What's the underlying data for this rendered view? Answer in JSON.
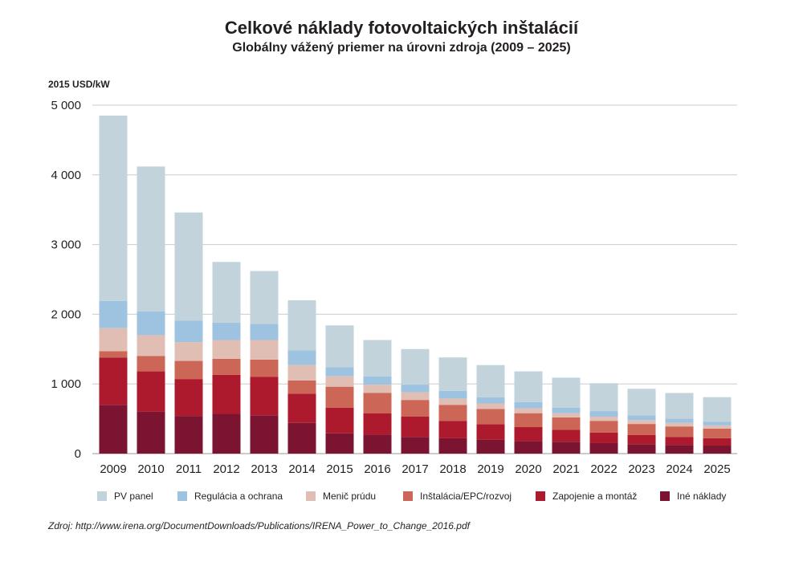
{
  "chart_data": {
    "type": "bar",
    "stacked": true,
    "title": "Celkové náklady fotovoltaických inštalácií",
    "subtitle": "Globálny vážený priemer na úrovni zdroja (2009 – 2025)",
    "ylabel": "2015 USD/kW",
    "xlabel": "",
    "ylim": [
      0,
      5000
    ],
    "yticks": [
      0,
      1000,
      2000,
      3000,
      4000,
      5000
    ],
    "ytick_labels": [
      "0",
      "1 000",
      "2 000",
      "3 000",
      "4 000",
      "5 000"
    ],
    "categories": [
      "2009",
      "2010",
      "2011",
      "2012",
      "2013",
      "2014",
      "2015",
      "2016",
      "2017",
      "2018",
      "2019",
      "2020",
      "2021",
      "2022",
      "2023",
      "2024",
      "2025"
    ],
    "series": [
      {
        "name": "Iné náklady",
        "color": "#7b1430",
        "values": [
          700,
          600,
          540,
          570,
          550,
          440,
          290,
          270,
          240,
          220,
          200,
          180,
          170,
          150,
          135,
          125,
          115
        ]
      },
      {
        "name": "Zapojenie a montáž",
        "color": "#ad1a2e",
        "values": [
          680,
          580,
          530,
          560,
          550,
          420,
          370,
          310,
          290,
          250,
          220,
          200,
          170,
          150,
          130,
          115,
          105
        ]
      },
      {
        "name": "Inštalácia/EPC/rozvoj",
        "color": "#cc6656",
        "values": [
          90,
          220,
          260,
          230,
          250,
          190,
          300,
          290,
          240,
          230,
          220,
          200,
          180,
          170,
          160,
          150,
          140
        ]
      },
      {
        "name": "Menič prúdu",
        "color": "#e1beb4",
        "values": [
          330,
          300,
          270,
          270,
          280,
          220,
          150,
          120,
          110,
          90,
          80,
          70,
          60,
          60,
          55,
          50,
          45
        ]
      },
      {
        "name": "Regulácia a ochrana",
        "color": "#9dc3e0",
        "values": [
          390,
          340,
          310,
          250,
          230,
          210,
          130,
          120,
          110,
          110,
          90,
          90,
          80,
          80,
          70,
          60,
          50
        ]
      },
      {
        "name": "PV panel",
        "color": "#c2d3db",
        "values": [
          2660,
          2080,
          1550,
          870,
          760,
          720,
          600,
          520,
          510,
          480,
          460,
          440,
          430,
          400,
          380,
          370,
          355
        ]
      }
    ],
    "legend": {
      "position": "bottom",
      "order": [
        "PV panel",
        "Regulácia a ochrana",
        "Menič prúdu",
        "Inštalácia/EPC/rozvoj",
        "Zapojenie a montáž",
        "Iné náklady"
      ]
    },
    "grid": true
  },
  "source": "Zdroj: http://www.irena.org/DocumentDownloads/Publications/IRENA_Power_to_Change_2016.pdf"
}
